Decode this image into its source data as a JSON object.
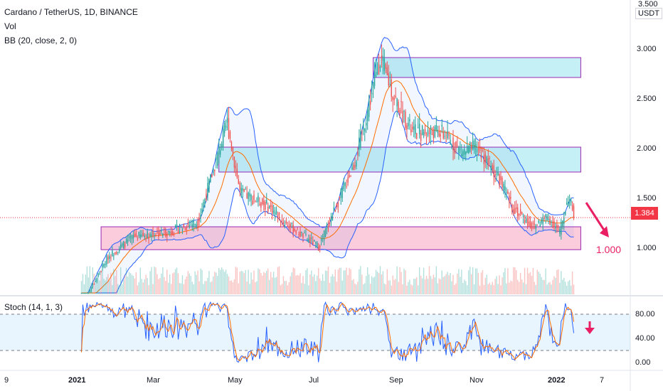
{
  "header": {
    "title": "Cardano / TetherUS, 1D, BINANCE",
    "vol_label": "Vol",
    "bb_label": "BB (20, close, 2, 0)",
    "currency": "USDT"
  },
  "price_axis": {
    "ticks": [
      "3.500",
      "3.000",
      "2.500",
      "2.000",
      "1.500",
      "1.000"
    ],
    "last_price": "1.384"
  },
  "stoch": {
    "label": "Stoch (14, 1, 3)",
    "ticks": [
      "80.00",
      "40.00",
      "0.00"
    ]
  },
  "time_axis": {
    "ticks": [
      "9",
      "2021",
      "Mar",
      "May",
      "Jul",
      "Sep",
      "Nov",
      "2022",
      "7"
    ]
  },
  "annotations": {
    "target_label": "1.000"
  },
  "colors": {
    "up": "#26a69a",
    "down": "#ef5350",
    "bb_band": "#2962ff",
    "bb_basis": "#ff6d00",
    "zone_resistance": "#b2ebf2",
    "zone_support": "#f8bbd0",
    "zone_border": "#9c27b0",
    "stoch_k": "#2962ff",
    "stoch_d": "#ff6d00",
    "arrow": "#e91e63",
    "price_tag": "#f23645"
  },
  "chart_data": {
    "type": "candlestick",
    "symbol": "ADA/USDT",
    "timeframe": "1D",
    "y_range": [
      0.6,
      3.5
    ],
    "x_ticks": [
      "2021",
      "Mar",
      "May",
      "Jul",
      "Sep",
      "Nov",
      "2022"
    ],
    "price_path": [
      {
        "date": "2021-02-01",
        "close": 0.45
      },
      {
        "date": "2021-02-20",
        "close": 0.95
      },
      {
        "date": "2021-03-10",
        "close": 1.15
      },
      {
        "date": "2021-04-05",
        "close": 1.2
      },
      {
        "date": "2021-04-25",
        "close": 1.3
      },
      {
        "date": "2021-05-16",
        "close": 2.3
      },
      {
        "date": "2021-05-25",
        "close": 1.6
      },
      {
        "date": "2021-06-15",
        "close": 1.45
      },
      {
        "date": "2021-06-25",
        "close": 1.3
      },
      {
        "date": "2021-07-20",
        "close": 1.05
      },
      {
        "date": "2021-08-15",
        "close": 1.9
      },
      {
        "date": "2021-09-02",
        "close": 2.95
      },
      {
        "date": "2021-09-12",
        "close": 2.55
      },
      {
        "date": "2021-09-25",
        "close": 2.2
      },
      {
        "date": "2021-10-15",
        "close": 2.2
      },
      {
        "date": "2021-10-30",
        "close": 2.0
      },
      {
        "date": "2021-11-10",
        "close": 2.05
      },
      {
        "date": "2021-11-25",
        "close": 1.75
      },
      {
        "date": "2021-12-05",
        "close": 1.45
      },
      {
        "date": "2021-12-20",
        "close": 1.25
      },
      {
        "date": "2021-12-30",
        "close": 1.35
      },
      {
        "date": "2022-01-08",
        "close": 1.2
      },
      {
        "date": "2022-01-14",
        "close": 1.55
      },
      {
        "date": "2022-01-18",
        "close": 1.384
      }
    ],
    "zones": [
      {
        "type": "resistance",
        "low": 2.75,
        "high": 2.95,
        "from": "2021-08-28",
        "to": "2022-01-23"
      },
      {
        "type": "resistance",
        "low": 1.8,
        "high": 2.05,
        "from": "2021-05-10",
        "to": "2022-01-23"
      },
      {
        "type": "support",
        "low": 1.02,
        "high": 1.25,
        "from": "2021-02-15",
        "to": "2022-01-23"
      }
    ],
    "target": 1.0,
    "stoch_range": [
      0,
      100
    ],
    "stoch_levels": [
      80,
      20
    ]
  }
}
